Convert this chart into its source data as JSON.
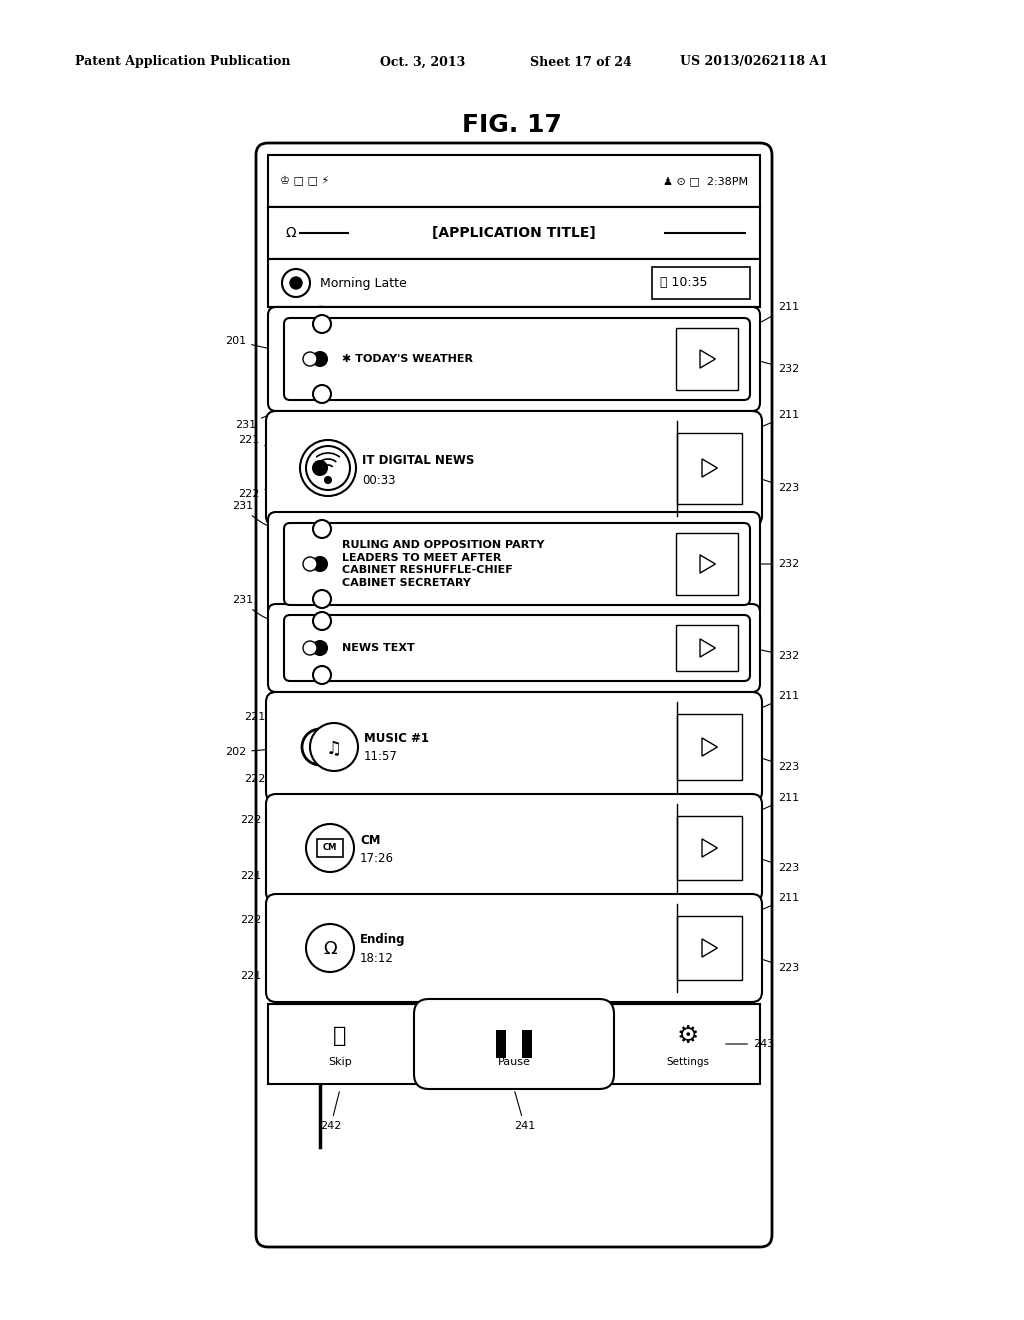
{
  "header_text": "Patent Application Publication",
  "header_date": "Oct. 3, 2013",
  "header_sheet": "Sheet 17 of 24",
  "header_patent": "US 2013/0262118 A1",
  "fig_label": "FIG. 17",
  "bg_color": "#ffffff",
  "line_color": "#000000"
}
